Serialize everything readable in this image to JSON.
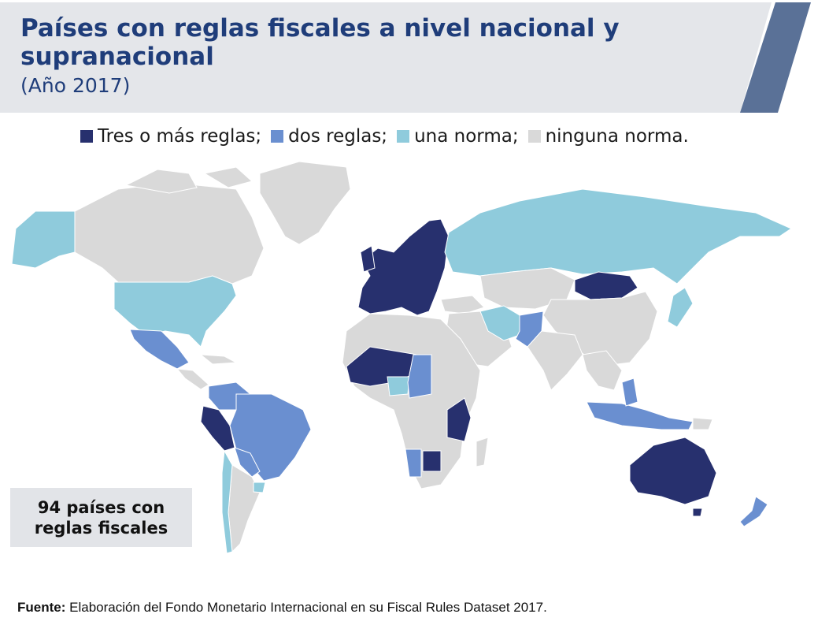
{
  "header": {
    "title": "Países con reglas fiscales a nivel nacional y supranacional",
    "subtitle": "(Año 2017)"
  },
  "legend": {
    "items": [
      {
        "label": "Tres o más reglas;",
        "color": "#27306e"
      },
      {
        "label": "dos reglas;",
        "color": "#6a8fd0"
      },
      {
        "label": "una norma;",
        "color": "#8fcbdc"
      },
      {
        "label": "ninguna norma.",
        "color": "#d9d9d9"
      }
    ]
  },
  "map": {
    "categories": {
      "three_or_more": [
        "Europe (EU)",
        "Peru",
        "Mali",
        "Niger",
        "Tanzania",
        "Botswana",
        "Mongolia",
        "Australia"
      ],
      "two": [
        "Mexico",
        "Brazil",
        "Colombia",
        "Paraguay",
        "Pakistan",
        "Indonesia",
        "Namibia",
        "Nigeria region",
        "New Zealand",
        "Philippines"
      ],
      "one": [
        "United States",
        "Alaska",
        "Russia",
        "Iran",
        "Chile",
        "Uruguay",
        "Ghana"
      ],
      "none": [
        "Canada",
        "Greenland",
        "China",
        "India",
        "Africa (rest)",
        "Middle East",
        "Argentina"
      ]
    }
  },
  "counter": {
    "line1": "94 países con",
    "line2": "reglas fiscales"
  },
  "source": {
    "label": "Fuente:",
    "text": "Elaboración del Fondo Monetario Internacional en su Fiscal Rules Dataset 2017."
  },
  "colors": {
    "header_bg": "#e4e6ea",
    "accent": "#5a7197",
    "title": "#1f3d7a"
  }
}
